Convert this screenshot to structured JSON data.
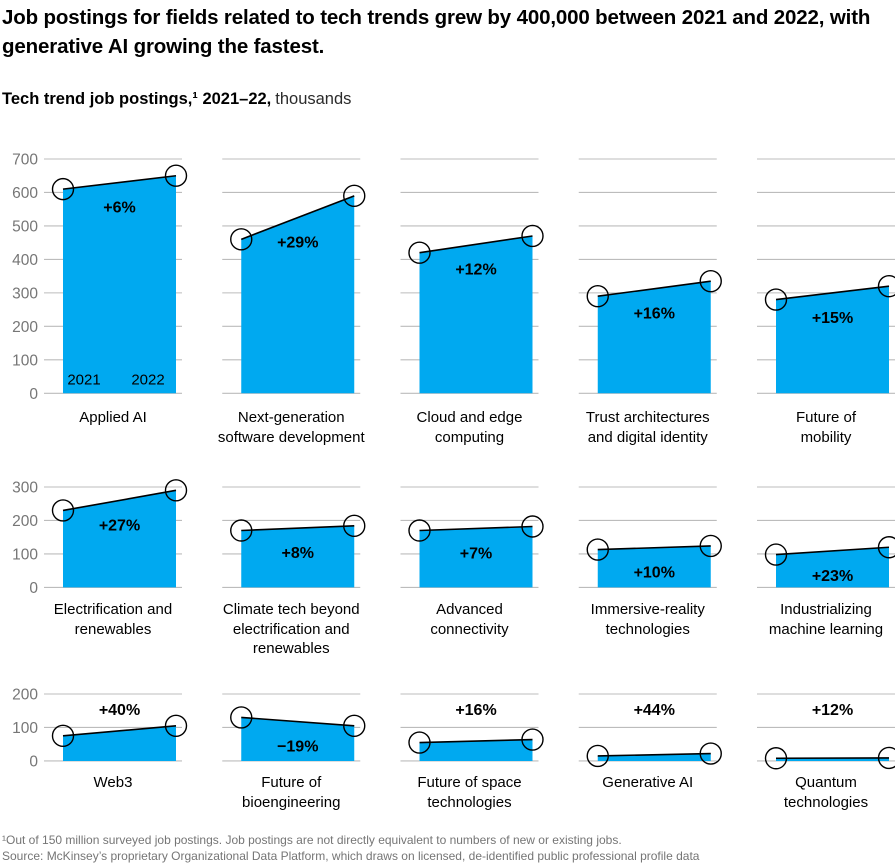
{
  "header": {
    "title": "Job postings for fields related to tech trends grew by 400,000 between 2021 and 2022, with generative AI growing the fastest.",
    "subtitle_bold": "Tech trend job postings,¹ 2021–22,",
    "subtitle_unit": "thousands"
  },
  "chart_data": {
    "type": "area",
    "x": [
      2021,
      2022
    ],
    "xlabel": "",
    "ylabel": "thousands",
    "grid": true,
    "year_labels": [
      "2021",
      "2022"
    ],
    "colors": {
      "area": "#00A9F0",
      "line": "#000000",
      "marker_stroke": "#000000",
      "grid": "#bcbcbc",
      "tick_text": "#767676",
      "pct_text": "#000000"
    },
    "rows": [
      {
        "ymax": 700,
        "yticks": [
          700,
          600,
          500,
          400,
          300,
          200,
          100,
          0
        ],
        "charts": [
          {
            "label": "Applied AI",
            "values": [
              610,
              650
            ],
            "pct": "+6%",
            "pct_pos": "inside",
            "show_year_labels": true
          },
          {
            "label": "Next-generation\nsoftware development",
            "values": [
              460,
              590
            ],
            "pct": "+29%",
            "pct_pos": "inside"
          },
          {
            "label": "Cloud and edge\ncomputing",
            "values": [
              420,
              470
            ],
            "pct": "+12%",
            "pct_pos": "inside"
          },
          {
            "label": "Trust architectures\nand digital identity",
            "values": [
              290,
              335
            ],
            "pct": "+16%",
            "pct_pos": "inside"
          },
          {
            "label": "Future of\nmobility",
            "values": [
              280,
              320
            ],
            "pct": "+15%",
            "pct_pos": "inside"
          }
        ]
      },
      {
        "ymax": 300,
        "yticks": [
          300,
          200,
          100,
          0
        ],
        "charts": [
          {
            "label": "Electrification and\nrenewables",
            "values": [
              230,
              290
            ],
            "pct": "+27%",
            "pct_pos": "inside"
          },
          {
            "label": "Climate tech beyond\nelectrification and\nrenewables",
            "values": [
              170,
              184
            ],
            "pct": "+8%",
            "pct_pos": "inside"
          },
          {
            "label": "Advanced\nconnectivity",
            "values": [
              170,
              182
            ],
            "pct": "+7%",
            "pct_pos": "inside"
          },
          {
            "label": "Immersive-reality\ntechnologies",
            "values": [
              113,
              124
            ],
            "pct": "+10%",
            "pct_pos": "inside"
          },
          {
            "label": "Industrializing\nmachine learning",
            "values": [
              98,
              120
            ],
            "pct": "+23%",
            "pct_pos": "inside"
          }
        ]
      },
      {
        "ymax": 200,
        "yticks": [
          200,
          100,
          0
        ],
        "charts": [
          {
            "label": "Web3",
            "values": [
              75,
              105
            ],
            "pct": "+40%",
            "pct_pos": "above"
          },
          {
            "label": "Future of\nbioengineering",
            "values": [
              130,
              105
            ],
            "pct": "−19%",
            "pct_pos": "inside"
          },
          {
            "label": "Future of space\ntechnologies",
            "values": [
              55,
              64
            ],
            "pct": "+16%",
            "pct_pos": "above"
          },
          {
            "label": "Generative AI",
            "values": [
              15,
              22
            ],
            "pct": "+44%",
            "pct_pos": "above"
          },
          {
            "label": "Quantum\ntechnologies",
            "values": [
              8,
              9
            ],
            "pct": "+12%",
            "pct_pos": "above"
          }
        ]
      }
    ]
  },
  "footnotes": [
    "¹Out of 150 million surveyed job postings. Job postings are not directly equivalent to numbers of new or existing jobs.",
    "Source: McKinsey’s proprietary Organizational Data Platform, which draws on licensed, de-identified public professional profile data"
  ]
}
